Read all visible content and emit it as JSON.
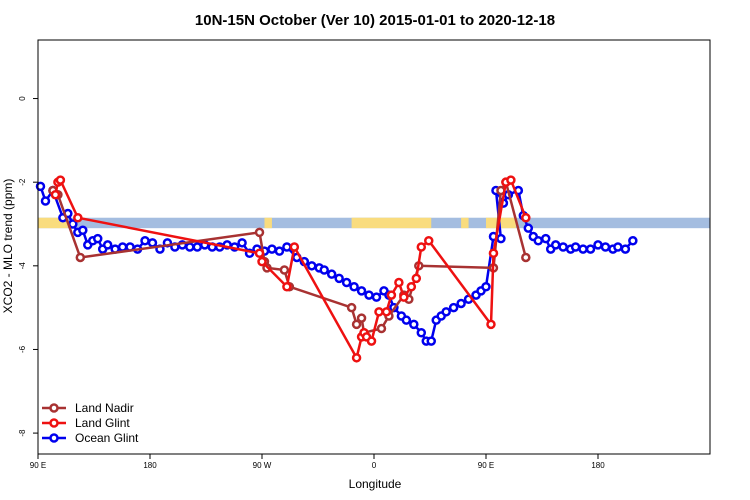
{
  "chart_data": {
    "type": "line",
    "title": "10N-15N October (Ver 10)   2015-01-01 to 2020-12-18",
    "xlabel": "Longitude",
    "ylabel": "XCO2 - MLO trend (ppm)",
    "xlim": [
      0,
      270
    ],
    "ylim": [
      -8.5,
      1.4
    ],
    "x_ticks": [
      {
        "value": 0,
        "label": "90 E"
      },
      {
        "value": 45,
        "label": "180"
      },
      {
        "value": 90,
        "label": "90 W"
      },
      {
        "value": 135,
        "label": "0"
      },
      {
        "value": 180,
        "label": "90 E"
      },
      {
        "value": 225,
        "label": "180"
      }
    ],
    "y_ticks": [
      {
        "value": 0,
        "label": "0"
      },
      {
        "value": -2,
        "label": "-2"
      },
      {
        "value": -4,
        "label": "-4"
      },
      {
        "value": -6,
        "label": "-6"
      },
      {
        "value": -8,
        "label": "-8"
      }
    ],
    "land_band": {
      "y_range": [
        -3.1,
        -2.85
      ],
      "ocean_color": "#a4bde0",
      "land_color": "#f9dc7e",
      "land_segments_x": [
        [
          0,
          12
        ],
        [
          91,
          94
        ],
        [
          126,
          158
        ],
        [
          170,
          173
        ],
        [
          180,
          192
        ]
      ]
    },
    "legend": {
      "position": "bottom-left"
    },
    "series": [
      {
        "name": "Land Nadir",
        "color": "#a83232",
        "points": [
          [
            6,
            -2.2
          ],
          [
            8,
            -2.3
          ],
          [
            17,
            -3.8
          ],
          [
            89,
            -3.2
          ],
          [
            91,
            -3.9
          ],
          [
            92,
            -4.05
          ],
          [
            99,
            -4.1
          ],
          [
            101,
            -4.5
          ],
          [
            126,
            -5.0
          ],
          [
            128,
            -5.4
          ],
          [
            130,
            -5.25
          ],
          [
            131,
            -5.6
          ],
          [
            138,
            -5.5
          ],
          [
            141,
            -5.2
          ],
          [
            147,
            -4.7
          ],
          [
            149,
            -4.8
          ],
          [
            153,
            -4.0
          ],
          [
            183,
            -4.05
          ],
          [
            186,
            -2.2
          ],
          [
            188,
            -2.0
          ],
          [
            196,
            -3.8
          ]
        ]
      },
      {
        "name": "Land Glint",
        "color": "#ee1111",
        "points": [
          [
            7,
            -2.3
          ],
          [
            8,
            -2.0
          ],
          [
            9,
            -1.95
          ],
          [
            16,
            -2.85
          ],
          [
            89,
            -3.7
          ],
          [
            90,
            -3.9
          ],
          [
            100,
            -4.5
          ],
          [
            103,
            -3.55
          ],
          [
            128,
            -6.2
          ],
          [
            130,
            -5.7
          ],
          [
            131,
            -5.6
          ],
          [
            132,
            -5.7
          ],
          [
            134,
            -5.8
          ],
          [
            137,
            -5.1
          ],
          [
            140,
            -5.1
          ],
          [
            142,
            -4.7
          ],
          [
            145,
            -4.4
          ],
          [
            147,
            -4.75
          ],
          [
            150,
            -4.5
          ],
          [
            152,
            -4.3
          ],
          [
            154,
            -3.55
          ],
          [
            157,
            -3.4
          ],
          [
            182,
            -5.4
          ],
          [
            183,
            -3.7
          ],
          [
            188,
            -2.0
          ],
          [
            190,
            -1.95
          ],
          [
            196,
            -2.85
          ]
        ]
      },
      {
        "name": "Ocean Glint",
        "color": "#0000ee",
        "points": [
          [
            1,
            -2.1
          ],
          [
            3,
            -2.45
          ],
          [
            6,
            -2.2
          ],
          [
            10,
            -2.85
          ],
          [
            12,
            -2.75
          ],
          [
            14,
            -3.0
          ],
          [
            16,
            -3.2
          ],
          [
            18,
            -3.15
          ],
          [
            20,
            -3.5
          ],
          [
            22,
            -3.4
          ],
          [
            24,
            -3.35
          ],
          [
            26,
            -3.6
          ],
          [
            28,
            -3.5
          ],
          [
            31,
            -3.6
          ],
          [
            34,
            -3.55
          ],
          [
            37,
            -3.55
          ],
          [
            40,
            -3.6
          ],
          [
            43,
            -3.4
          ],
          [
            46,
            -3.45
          ],
          [
            49,
            -3.6
          ],
          [
            52,
            -3.45
          ],
          [
            55,
            -3.55
          ],
          [
            58,
            -3.5
          ],
          [
            61,
            -3.55
          ],
          [
            64,
            -3.55
          ],
          [
            67,
            -3.5
          ],
          [
            70,
            -3.55
          ],
          [
            73,
            -3.55
          ],
          [
            76,
            -3.5
          ],
          [
            79,
            -3.55
          ],
          [
            82,
            -3.45
          ],
          [
            85,
            -3.7
          ],
          [
            88,
            -3.6
          ],
          [
            91,
            -3.65
          ],
          [
            94,
            -3.6
          ],
          [
            97,
            -3.65
          ],
          [
            100,
            -3.55
          ],
          [
            104,
            -3.8
          ],
          [
            107,
            -3.9
          ],
          [
            110,
            -4.0
          ],
          [
            113,
            -4.05
          ],
          [
            115,
            -4.1
          ],
          [
            118,
            -4.2
          ],
          [
            121,
            -4.3
          ],
          [
            124,
            -4.4
          ],
          [
            127,
            -4.5
          ],
          [
            130,
            -4.6
          ],
          [
            133,
            -4.7
          ],
          [
            136,
            -4.75
          ],
          [
            139,
            -4.6
          ],
          [
            141,
            -4.7
          ],
          [
            143,
            -5.0
          ],
          [
            146,
            -5.2
          ],
          [
            148,
            -5.3
          ],
          [
            151,
            -5.4
          ],
          [
            154,
            -5.6
          ],
          [
            156,
            -5.8
          ],
          [
            158,
            -5.8
          ],
          [
            160,
            -5.3
          ],
          [
            162,
            -5.2
          ],
          [
            164,
            -5.1
          ],
          [
            167,
            -5.0
          ],
          [
            170,
            -4.9
          ],
          [
            173,
            -4.8
          ],
          [
            176,
            -4.7
          ],
          [
            178,
            -4.6
          ],
          [
            180,
            -4.5
          ],
          [
            183,
            -3.3
          ],
          [
            186,
            -3.35
          ],
          [
            184,
            -2.2
          ],
          [
            187,
            -2.5
          ],
          [
            189,
            -2.3
          ],
          [
            193,
            -2.2
          ],
          [
            195,
            -2.8
          ],
          [
            197,
            -3.1
          ],
          [
            199,
            -3.3
          ],
          [
            201,
            -3.4
          ],
          [
            204,
            -3.35
          ],
          [
            206,
            -3.6
          ],
          [
            208,
            -3.5
          ],
          [
            211,
            -3.55
          ],
          [
            214,
            -3.6
          ],
          [
            216,
            -3.55
          ],
          [
            219,
            -3.6
          ],
          [
            222,
            -3.6
          ],
          [
            225,
            -3.5
          ],
          [
            228,
            -3.55
          ],
          [
            231,
            -3.6
          ],
          [
            233,
            -3.55
          ],
          [
            236,
            -3.6
          ],
          [
            239,
            -3.4
          ]
        ]
      }
    ]
  }
}
